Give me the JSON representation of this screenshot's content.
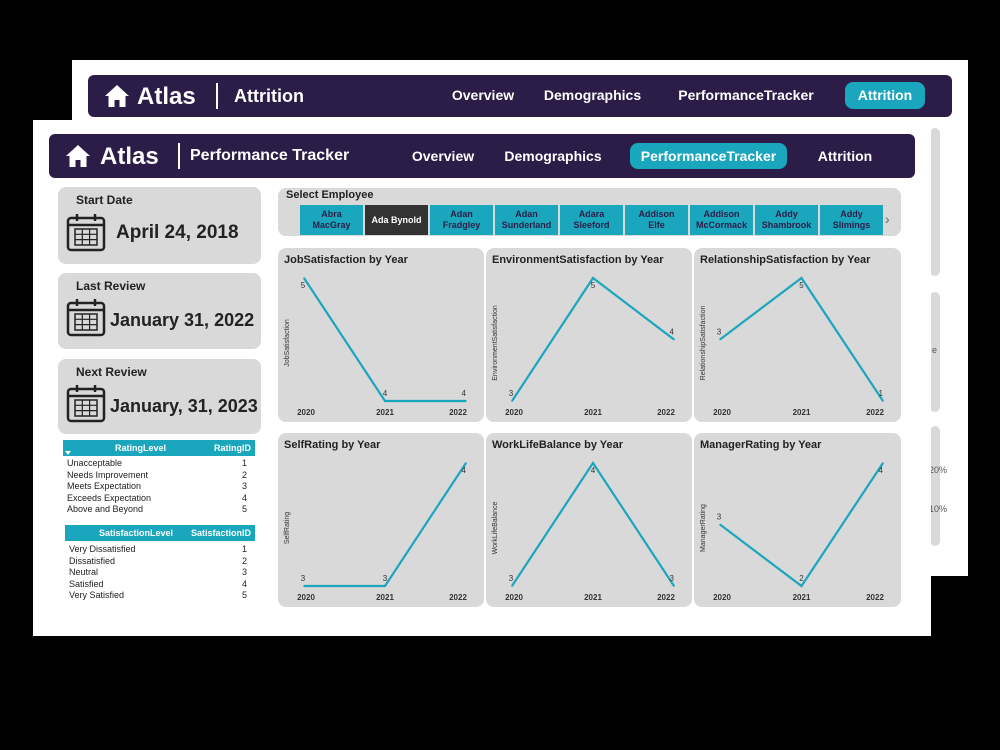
{
  "back": {
    "brand": "Atlas",
    "page_title": "Attrition",
    "nav": [
      "Overview",
      "Demographics",
      "PerformanceTracker",
      "Attrition"
    ],
    "active_nav": "Attrition",
    "peek_labels": [
      "e",
      "20%",
      "10%"
    ]
  },
  "front": {
    "brand": "Atlas",
    "page_title": "Performance Tracker",
    "nav": [
      "Overview",
      "Demographics",
      "PerformanceTracker",
      "Attrition"
    ],
    "active_nav": "PerformanceTracker"
  },
  "dates": {
    "start": {
      "label": "Start Date",
      "value": "April 24, 2018"
    },
    "last": {
      "label": "Last Review",
      "value": "January 31, 2022"
    },
    "next": {
      "label": "Next Review",
      "value": "January, 31, 2023"
    }
  },
  "rating_table": {
    "headers": [
      "RatingLevel",
      "RatingID"
    ],
    "rows": [
      [
        "Unacceptable",
        "1"
      ],
      [
        "Needs Improvement",
        "2"
      ],
      [
        "Meets Expectation",
        "3"
      ],
      [
        "Exceeds Expectation",
        "4"
      ],
      [
        "Above and Beyond",
        "5"
      ]
    ]
  },
  "satisfaction_table": {
    "headers": [
      "SatisfactionLevel",
      "SatisfactionID"
    ],
    "rows": [
      [
        "Very Dissatisfied",
        "1"
      ],
      [
        "Dissatisfied",
        "2"
      ],
      [
        "Neutral",
        "3"
      ],
      [
        "Satisfied",
        "4"
      ],
      [
        "Very Satisfied",
        "5"
      ]
    ]
  },
  "employee_slicer": {
    "label": "Select Employee",
    "employees": [
      "Abra\nMacGray",
      "Ada Bynold",
      "Adan\nFradgley",
      "Adan\nSunderland",
      "Adara\nSleeford",
      "Addison\nElfe",
      "Addison\nMcCormack",
      "Addy\nShambrook",
      "Addy\nSlimings"
    ],
    "selected": "Ada Bynold",
    "next_icon": "chevron-right-icon"
  },
  "colors": {
    "header_bg": "#2b1d48",
    "accent": "#1aa6bd",
    "card_bg": "#d9d9d9",
    "line": "#1aa6bd"
  },
  "chart_data": [
    {
      "type": "line",
      "title": "JobSatisfaction by Year",
      "xlabel": "",
      "ylabel": "JobSatisfaction",
      "x": [
        "2020",
        "2021",
        "2022"
      ],
      "values": [
        5,
        4,
        4
      ],
      "ylim": [
        4,
        5
      ]
    },
    {
      "type": "line",
      "title": "EnvironmentSatisfaction by Year",
      "xlabel": "",
      "ylabel": "EnvironmentSatisfaction",
      "x": [
        "2020",
        "2021",
        "2022"
      ],
      "values": [
        3,
        5,
        4
      ],
      "ylim": [
        3,
        5
      ]
    },
    {
      "type": "line",
      "title": "RelationshipSatisfaction by Year",
      "xlabel": "",
      "ylabel": "RelationshipSatisfaction",
      "x": [
        "2020",
        "2021",
        "2022"
      ],
      "values": [
        3,
        5,
        1
      ],
      "ylim": [
        1,
        5
      ]
    },
    {
      "type": "line",
      "title": "SelfRating by Year",
      "xlabel": "",
      "ylabel": "SelfRating",
      "x": [
        "2020",
        "2021",
        "2022"
      ],
      "values": [
        3,
        3,
        4
      ],
      "ylim": [
        3,
        4
      ]
    },
    {
      "type": "line",
      "title": "WorkLifeBalance by Year",
      "xlabel": "",
      "ylabel": "WorkLifeBalance",
      "x": [
        "2020",
        "2021",
        "2022"
      ],
      "values": [
        3,
        4,
        3
      ],
      "ylim": [
        3,
        4
      ]
    },
    {
      "type": "line",
      "title": "ManagerRating by Year",
      "xlabel": "",
      "ylabel": "ManagerRating",
      "x": [
        "2020",
        "2021",
        "2022"
      ],
      "values": [
        3,
        2,
        4
      ],
      "ylim": [
        2,
        4
      ]
    }
  ]
}
